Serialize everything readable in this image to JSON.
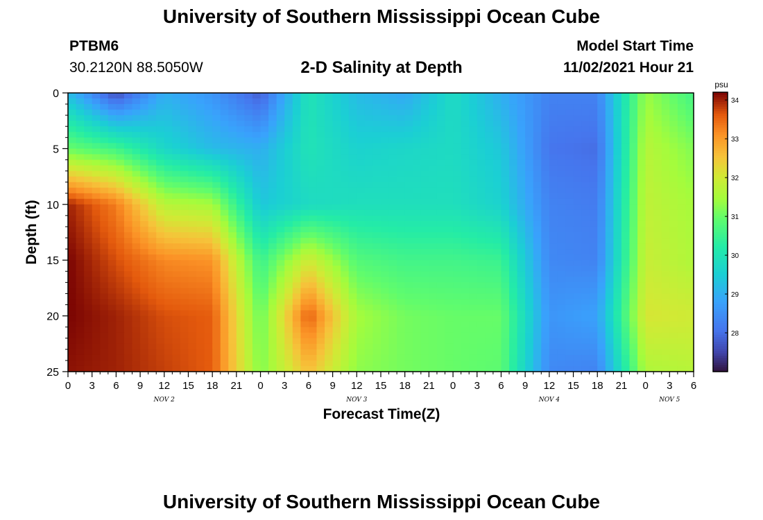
{
  "header": {
    "title": "University of Southern Mississippi Ocean Cube",
    "station_id": "PTBM6",
    "coordinates": "30.2120N  88.5050W",
    "plot_title": "2-D Salinity at Depth",
    "model_start_label": "Model Start Time",
    "model_start_value": "11/02/2021 Hour 21"
  },
  "footer": {
    "title": "University of Southern Mississippi Ocean Cube"
  },
  "colors": {
    "background": "#ffffff",
    "text": "#000000"
  },
  "chart_data": {
    "type": "heatmap",
    "title": "2-D Salinity at Depth",
    "xlabel": "Forecast Time(Z)",
    "ylabel": "Depth (ft)",
    "x_range_hours": [
      0,
      78
    ],
    "x_tick_step_hours": 3,
    "x_tick_labels": [
      "0",
      "3",
      "6",
      "9",
      "12",
      "15",
      "18",
      "21",
      "0",
      "3",
      "6",
      "9",
      "12",
      "15",
      "18",
      "21",
      "0",
      "3",
      "6",
      "9",
      "12",
      "15",
      "18",
      "21",
      "0",
      "3",
      "6"
    ],
    "day_labels": [
      {
        "text": "NOV 2",
        "hour": 12
      },
      {
        "text": "NOV 3",
        "hour": 36
      },
      {
        "text": "NOV 4",
        "hour": 60
      },
      {
        "text": "NOV 5",
        "hour": 75
      }
    ],
    "y_range_ft": [
      0,
      25
    ],
    "y_ticks": [
      0,
      5,
      10,
      15,
      20,
      25
    ],
    "colorbar": {
      "unit": "psu",
      "range": [
        27,
        34.2
      ],
      "ticks": [
        34,
        33,
        32,
        31,
        30,
        29,
        28
      ],
      "colormap": "turbo"
    },
    "depths_ft": [
      0,
      5,
      10,
      15,
      20,
      25
    ],
    "hours": [
      0,
      6,
      12,
      18,
      24,
      30,
      36,
      42,
      48,
      54,
      60,
      66,
      72,
      78
    ],
    "values_psu": [
      [
        29.2,
        27.6,
        29.0,
        28.6,
        27.8,
        30.0,
        29.2,
        28.9,
        29.8,
        29.0,
        28.3,
        28.3,
        31.4,
        30.6
      ],
      [
        31.0,
        30.6,
        29.7,
        29.2,
        29.0,
        30.0,
        29.6,
        29.7,
        29.8,
        29.4,
        28.1,
        28.0,
        31.7,
        31.2
      ],
      [
        34.0,
        33.3,
        31.7,
        31.5,
        29.4,
        29.8,
        29.9,
        29.9,
        29.9,
        29.6,
        28.3,
        28.2,
        31.8,
        31.5
      ],
      [
        34.2,
        33.7,
        33.2,
        33.1,
        30.5,
        32.0,
        30.8,
        30.6,
        30.6,
        30.5,
        28.4,
        28.3,
        31.9,
        31.6
      ],
      [
        34.2,
        34.0,
        33.7,
        33.6,
        31.0,
        33.6,
        31.5,
        31.1,
        31.0,
        31.0,
        28.6,
        28.8,
        32.1,
        32.0
      ],
      [
        34.1,
        34.0,
        33.8,
        33.6,
        31.2,
        32.6,
        31.3,
        31.1,
        31.0,
        30.9,
        28.4,
        28.3,
        31.6,
        31.7
      ]
    ]
  }
}
